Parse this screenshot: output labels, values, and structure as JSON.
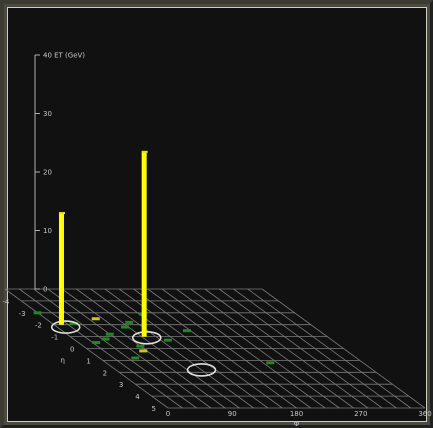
{
  "chart_data": {
    "type": "lego-plot",
    "z_axis": {
      "label": "ET (GeV)",
      "max": 40,
      "ticks": [
        0,
        10,
        20,
        30,
        40
      ],
      "tick_labels": [
        "0",
        "10",
        "20",
        "30",
        "40 ET (GeV)"
      ]
    },
    "eta_axis": {
      "label": "η",
      "range": [
        -5,
        5
      ],
      "ticks": [
        -5,
        -4,
        -3,
        -2,
        -1,
        0,
        1,
        2,
        3,
        4,
        5
      ],
      "tick_labels": [
        "-5",
        "-4",
        "-3",
        "-2",
        "-1",
        "0",
        "1",
        "2",
        "3",
        "4",
        "5"
      ]
    },
    "phi_axis": {
      "label": "Φ",
      "range": [
        0,
        360
      ],
      "ticks": [
        0,
        90,
        180,
        270,
        360
      ],
      "tick_labels": [
        "0",
        "90",
        "180",
        "270",
        "360"
      ]
    },
    "towers": [
      {
        "eta": -2.0,
        "phi": 12,
        "et": 19,
        "color": "#ffff00"
      },
      {
        "eta": -1.0,
        "phi": 105,
        "et": 31.5,
        "color": "#ffff00"
      }
    ],
    "small_deposits": [
      {
        "eta": -3.0,
        "phi": 0,
        "color": "#1f8a1f"
      },
      {
        "eta": -2.1,
        "phi": 30,
        "color": "#1f8a1f"
      },
      {
        "eta": -1.2,
        "phi": 60,
        "color": "#1f8a1f"
      },
      {
        "eta": -0.8,
        "phi": 45,
        "color": "#1f8a1f"
      },
      {
        "eta": -1.8,
        "phi": 95,
        "color": "#1f8a1f"
      },
      {
        "eta": -0.7,
        "phi": 130,
        "color": "#1f8a1f"
      },
      {
        "eta": -2.9,
        "phi": 145,
        "color": "#1f8a1f"
      },
      {
        "eta": -0.2,
        "phi": 80,
        "color": "#1f8a1f"
      },
      {
        "eta": 0.8,
        "phi": 50,
        "color": "#1f8a1f"
      },
      {
        "eta": 1.2,
        "phi": 230,
        "color": "#1f8a1f"
      },
      {
        "eta": -1.5,
        "phi": 175,
        "color": "#1f8a1f"
      },
      {
        "eta": -2.2,
        "phi": 110,
        "color": "#1f8a1f"
      },
      {
        "eta": -0.5,
        "phi": 25,
        "color": "#1f8a1f"
      },
      {
        "eta": 0.2,
        "phi": 75,
        "color": "#cccc00"
      },
      {
        "eta": -2.5,
        "phi": 70,
        "color": "#cccc00"
      }
    ],
    "jet_circles": [
      {
        "eta": -1.8,
        "phi": 12
      },
      {
        "eta": -0.9,
        "phi": 105
      },
      {
        "eta": 1.8,
        "phi": 120
      }
    ],
    "grid": true
  }
}
